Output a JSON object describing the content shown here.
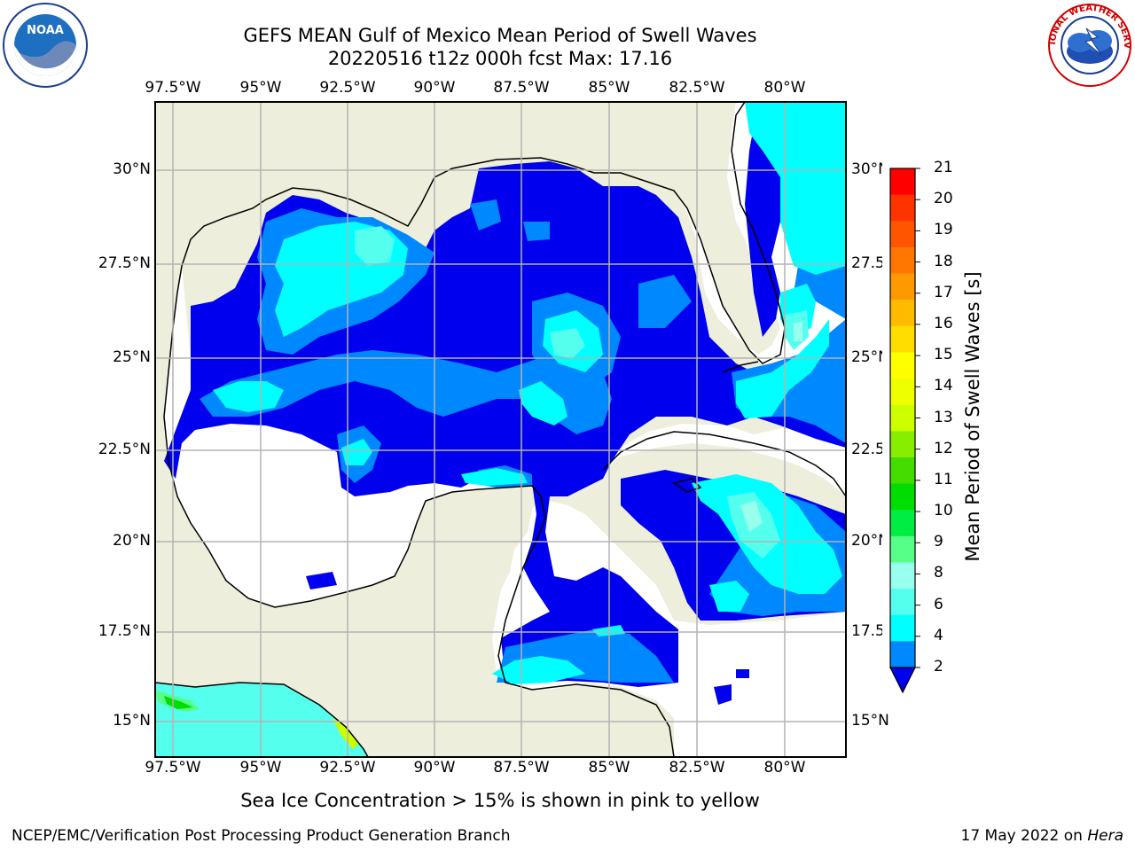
{
  "title": {
    "line1": "GEFS MEAN Gulf of Mexico Mean Period of Swell Waves",
    "line2": "20220516 t12z 000h fcst   Max: 17.16"
  },
  "map": {
    "lon_labels": [
      "97.5°W",
      "95°W",
      "92.5°W",
      "90°W",
      "87.5°W",
      "85°W",
      "82.5°W",
      "80°W"
    ],
    "lat_labels_left": [
      "30°N",
      "27.5°N",
      "25°N",
      "22.5°N",
      "20°N",
      "17.5°N",
      "15°N"
    ],
    "lat_labels_right": [
      "30°N",
      "27.5",
      "25°N",
      "22.5",
      "20°N",
      "17.5",
      "15°N"
    ],
    "land_color": "#eeeedc",
    "water_color": "#ffffff",
    "grid_color": "#b3b3b3"
  },
  "colorbar": {
    "title": "Mean Period of Swell Waves [s]",
    "ticks": [
      "21",
      "20",
      "19",
      "18",
      "17",
      "16",
      "15",
      "14",
      "13",
      "12",
      "11",
      "10",
      "9",
      "8",
      "6",
      "4",
      "2"
    ],
    "colors": [
      "#ff0000",
      "#ff3300",
      "#ff5500",
      "#ff7700",
      "#ff9900",
      "#ffbb00",
      "#ffdd00",
      "#ffff00",
      "#eeff00",
      "#ccff00",
      "#88ee00",
      "#44dd00",
      "#00dd00",
      "#00ee44",
      "#55ff88",
      "#99ffee",
      "#55ffee",
      "#00ffff",
      "#0088ff"
    ],
    "extend_color": "#0000ee"
  },
  "notes": {
    "sea_ice": "Sea Ice Concentration > 15% is shown in pink to yellow",
    "footer_left": "NCEP/EMC/Verification Post Processing Product Generation Branch",
    "footer_date": "17 May 2022 on ",
    "footer_host": "Hera"
  },
  "logos": {
    "left": "NOAA",
    "right": "NATIONAL WEATHER SERVICE"
  }
}
